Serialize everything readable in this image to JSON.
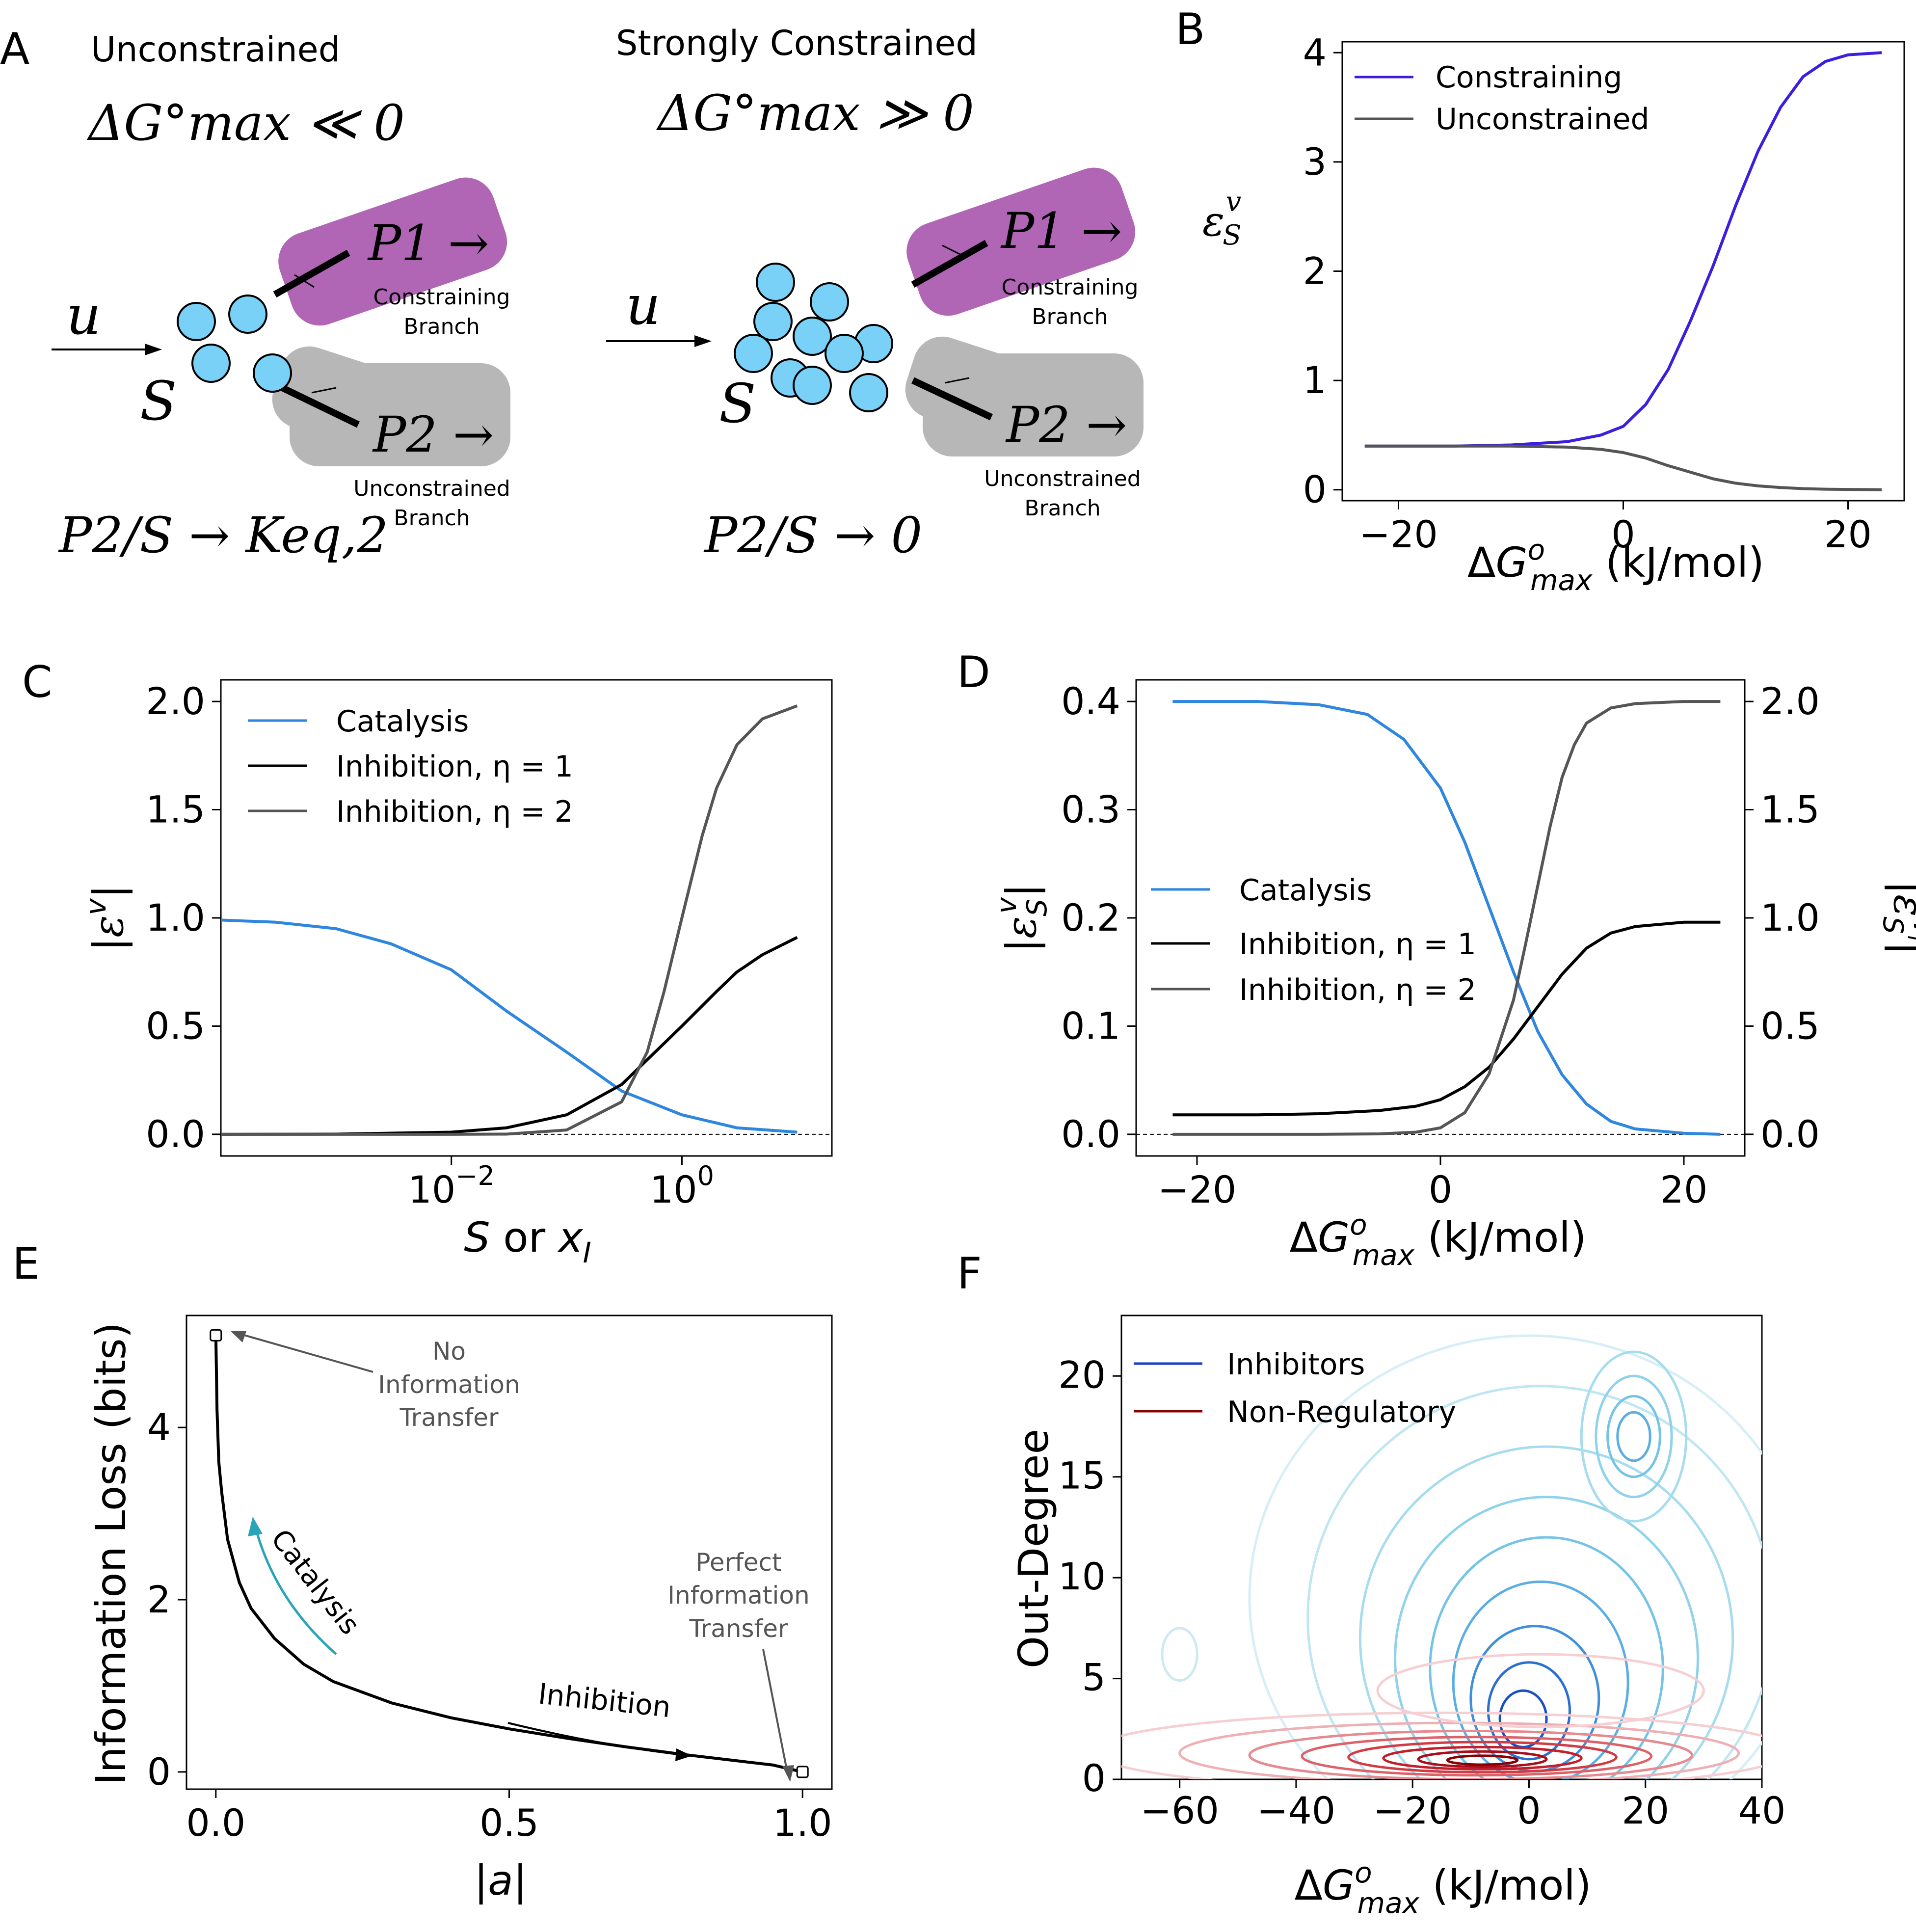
{
  "panel_labels": [
    "A",
    "B",
    "C",
    "D",
    "E",
    "F"
  ],
  "schematic": {
    "left_title": "Unconstrained",
    "left_condition": "ΔG°max ≪ 0",
    "right_title": "Strongly Constrained",
    "right_condition": "ΔG°max ≫ 0",
    "input_label": "u",
    "substrate_label": "S",
    "product1_label": "P1 →",
    "product2_label": "P2 →",
    "branch1_label_line1": "Constraining",
    "branch1_label_line2": "Branch",
    "branch2_label_line1": "Unconstrained",
    "branch2_label_line2": "Branch",
    "left_limit": "P2/S → Keq,2",
    "right_limit": "P2/S → 0"
  },
  "chart_data": [
    {
      "id": "B",
      "type": "line",
      "xlabel": "ΔG°max (kJ/mol)",
      "ylabel": "ε_S^v",
      "xlim": [
        -25,
        25
      ],
      "ylim": [
        -0.1,
        4.1
      ],
      "xticks": [
        -20,
        0,
        20
      ],
      "yticks": [
        0,
        1,
        2,
        3,
        4
      ],
      "legend_placement": "upper-left",
      "series": [
        {
          "name": "Constraining",
          "color": "#3b1fe0",
          "x": [
            -23,
            -15,
            -10,
            -5,
            -2,
            0,
            2,
            4,
            6,
            8,
            10,
            12,
            14,
            16,
            18,
            20,
            23
          ],
          "y": [
            0.4,
            0.4,
            0.41,
            0.44,
            0.5,
            0.58,
            0.78,
            1.1,
            1.55,
            2.05,
            2.6,
            3.1,
            3.5,
            3.78,
            3.92,
            3.98,
            4.0
          ]
        },
        {
          "name": "Unconstrained",
          "color": "#555555",
          "x": [
            -23,
            -15,
            -10,
            -5,
            -2,
            0,
            2,
            4,
            6,
            8,
            10,
            12,
            14,
            16,
            18,
            20,
            23
          ],
          "y": [
            0.4,
            0.4,
            0.4,
            0.39,
            0.37,
            0.34,
            0.29,
            0.22,
            0.16,
            0.1,
            0.06,
            0.035,
            0.02,
            0.01,
            0.005,
            0.003,
            0.0
          ]
        }
      ]
    },
    {
      "id": "C",
      "type": "line",
      "xlabel": "S or x_I",
      "ylabel": "|ε^v|",
      "xscale": "log",
      "xlim": [
        0.0001,
        20
      ],
      "ylim": [
        -0.1,
        2.1
      ],
      "xtick_labels": [
        "10^-2",
        "10^0"
      ],
      "xticks": [
        0.01,
        1
      ],
      "yticks": [
        0.0,
        0.5,
        1.0,
        1.5,
        2.0
      ],
      "ytick_labels": [
        "0.0",
        "0.5",
        "1.0",
        "1.5",
        "2.0"
      ],
      "hline": 0,
      "legend_placement": "upper-left",
      "series": [
        {
          "name": "Catalysis",
          "color": "#2e86de",
          "x": [
            0.0001,
            0.0003,
            0.001,
            0.003,
            0.01,
            0.03,
            0.1,
            0.3,
            1,
            3,
            10
          ],
          "y": [
            0.99,
            0.98,
            0.95,
            0.88,
            0.76,
            0.57,
            0.38,
            0.2,
            0.09,
            0.03,
            0.01
          ]
        },
        {
          "name": "Inhibition, η = 1",
          "color": "#000000",
          "x": [
            0.0001,
            0.001,
            0.01,
            0.03,
            0.1,
            0.3,
            1,
            2,
            3,
            5,
            10
          ],
          "y": [
            0.0,
            0.001,
            0.01,
            0.03,
            0.09,
            0.23,
            0.5,
            0.66,
            0.75,
            0.83,
            0.91
          ]
        },
        {
          "name": "Inhibition, η = 2",
          "color": "#555555",
          "x": [
            0.0001,
            0.01,
            0.03,
            0.1,
            0.3,
            0.5,
            0.7,
            1,
            1.5,
            2,
            3,
            5,
            10
          ],
          "y": [
            0.0,
            0.0,
            0.001,
            0.02,
            0.15,
            0.38,
            0.66,
            1.0,
            1.38,
            1.6,
            1.8,
            1.92,
            1.98
          ]
        }
      ]
    },
    {
      "id": "D",
      "type": "line",
      "xlabel": "ΔG°max (kJ/mol)",
      "ylabel": "|ε_S^v|",
      "ylabel_right": "|ε_S^{v_I}|",
      "xlim": [
        -25,
        25
      ],
      "ylim": [
        -0.02,
        0.42
      ],
      "ylim_right": [
        -0.1,
        2.1
      ],
      "xticks": [
        -20,
        0,
        20
      ],
      "yticks": [
        0.0,
        0.1,
        0.2,
        0.3,
        0.4
      ],
      "ytick_labels": [
        "0.0",
        "0.1",
        "0.2",
        "0.3",
        "0.4"
      ],
      "yticks_right": [
        0.0,
        0.5,
        1.0,
        1.5,
        2.0
      ],
      "ytick_labels_right": [
        "0.0",
        "0.5",
        "1.0",
        "1.5",
        "2.0"
      ],
      "hline": 0,
      "legend_placement": "center-left",
      "series": [
        {
          "name": "Catalysis",
          "axis": "left",
          "color": "#2e86de",
          "x": [
            -22,
            -15,
            -10,
            -6,
            -3,
            0,
            2,
            4,
            6,
            8,
            10,
            12,
            14,
            16,
            20,
            23
          ],
          "y": [
            0.4,
            0.4,
            0.397,
            0.388,
            0.365,
            0.32,
            0.27,
            0.21,
            0.15,
            0.095,
            0.055,
            0.028,
            0.012,
            0.005,
            0.001,
            0.0
          ]
        },
        {
          "name": "Inhibition, η = 1",
          "axis": "right",
          "color": "#000000",
          "x": [
            -22,
            -15,
            -10,
            -5,
            -2,
            0,
            2,
            4,
            6,
            8,
            10,
            12,
            14,
            16,
            20,
            23
          ],
          "y": [
            0.09,
            0.09,
            0.095,
            0.11,
            0.13,
            0.16,
            0.22,
            0.31,
            0.44,
            0.59,
            0.74,
            0.86,
            0.93,
            0.96,
            0.98,
            0.98
          ]
        },
        {
          "name": "Inhibition, η = 2",
          "axis": "right",
          "color": "#555555",
          "x": [
            -22,
            -10,
            -5,
            -2,
            0,
            2,
            4,
            6,
            7,
            8,
            9,
            10,
            11,
            12,
            14,
            16,
            20,
            23
          ],
          "y": [
            0.0,
            0.0,
            0.002,
            0.01,
            0.03,
            0.1,
            0.28,
            0.62,
            0.88,
            1.15,
            1.42,
            1.65,
            1.8,
            1.9,
            1.97,
            1.99,
            2.0,
            2.0
          ]
        }
      ]
    },
    {
      "id": "E",
      "type": "line",
      "xlabel": "|a|",
      "ylabel": "Information Loss (bits)",
      "xlim": [
        -0.05,
        1.05
      ],
      "ylim": [
        -0.2,
        5.3
      ],
      "xticks": [
        0.0,
        0.5,
        1.0
      ],
      "xtick_labels": [
        "0.0",
        "0.5",
        "1.0"
      ],
      "yticks": [
        0,
        2,
        4
      ],
      "series": [
        {
          "name": "",
          "color": "#000000",
          "x": [
            0.0,
            0.002,
            0.005,
            0.01,
            0.02,
            0.04,
            0.06,
            0.1,
            0.15,
            0.2,
            0.3,
            0.4,
            0.5,
            0.6,
            0.7,
            0.8,
            0.9,
            0.95,
            1.0
          ],
          "y": [
            5.07,
            4.2,
            3.6,
            3.25,
            2.7,
            2.2,
            1.9,
            1.55,
            1.25,
            1.05,
            0.8,
            0.63,
            0.5,
            0.39,
            0.29,
            0.2,
            0.12,
            0.08,
            0.0
          ]
        }
      ],
      "annotations": [
        {
          "text": [
            "No",
            "Information",
            "Transfer"
          ],
          "x": 0.0,
          "y": 5.07
        },
        {
          "text": [
            "Perfect",
            "Information",
            "Transfer"
          ],
          "x": 1.0,
          "y": 0.0
        },
        {
          "text": [
            "Catalysis"
          ]
        },
        {
          "text": [
            "Inhibition"
          ]
        }
      ]
    },
    {
      "id": "F",
      "type": "contour",
      "xlabel": "ΔG°max (kJ/mol)",
      "ylabel": "Out-Degree",
      "xlim": [
        -70,
        40
      ],
      "ylim": [
        0,
        23
      ],
      "xticks": [
        -60,
        -40,
        -20,
        0,
        20,
        40
      ],
      "yticks": [
        0,
        5,
        10,
        15,
        20
      ],
      "legend_placement": "upper-left",
      "series": [
        {
          "name": "Inhibitors",
          "color": "#1a3fc4"
        },
        {
          "name": "Non-Regulatory",
          "color": "#8b0000"
        }
      ]
    }
  ]
}
